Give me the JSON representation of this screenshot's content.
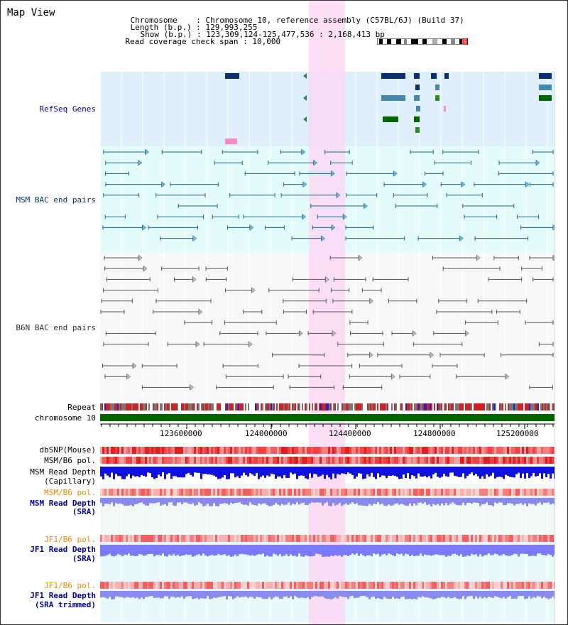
{
  "page": {
    "title": "Map View"
  },
  "header": {
    "chromosome_label": "Chromosome",
    "chromosome_value": "Chromosome 10, reference assembly (C57BL/6J) (Build 37)",
    "length_label": "Length (b.p.)",
    "length_value": "129,993,255",
    "show_label": "Show (b.p.)",
    "show_value": "123,309,124-125,477,536 : 2,168,413 bp",
    "span_label": "Read coverage check span",
    "span_value": "10,000"
  },
  "tracks": {
    "refseq": "RefSeq Genes",
    "msm_bac": "MSM BAC end pairs",
    "b6n_bac": "B6N BAC end pairs",
    "repeat": "Repeat",
    "chromosome": "chromosome 10",
    "dbsnp": "dbSNP(Mouse)",
    "msm_b6_pol_1": "MSM/B6 pol.",
    "msm_read_depth_cap_1": "MSM Read Depth",
    "msm_read_depth_cap_2": "(Capillary)",
    "msm_b6_pol_2": "MSM/B6 pol.",
    "msm_read_depth_sra_1": "MSM Read Depth",
    "msm_read_depth_sra_2": "(SRA)",
    "jf1_b6_pol_1": "JF1/B6 pol.",
    "jf1_read_depth_sra_1": "JF1 Read Depth",
    "jf1_read_depth_sra_2": "(SRA)",
    "jf1_b6_pol_2": "JF1/B6 pol.",
    "jf1_read_depth_trim_1": "JF1 Read Depth",
    "jf1_read_depth_trim_2": "(SRA trimmed)"
  },
  "ruler": {
    "ticks": [
      "123600000",
      "124000000",
      "124400000",
      "124800000",
      "125200000"
    ]
  },
  "colors": {
    "refseq_bg": "#dff0fa",
    "msm_bg": "#e3fbfb",
    "b6n_bg": "#f8f8f8",
    "highlight": "#fbd8f4",
    "chromosome": "#006600",
    "msm_label": "#003366",
    "refseq_label": "#000099",
    "orange_label": "#e89000",
    "blue_label": "#000099",
    "depth_dark": "#0000ee",
    "depth_light": "#8888ff"
  }
}
